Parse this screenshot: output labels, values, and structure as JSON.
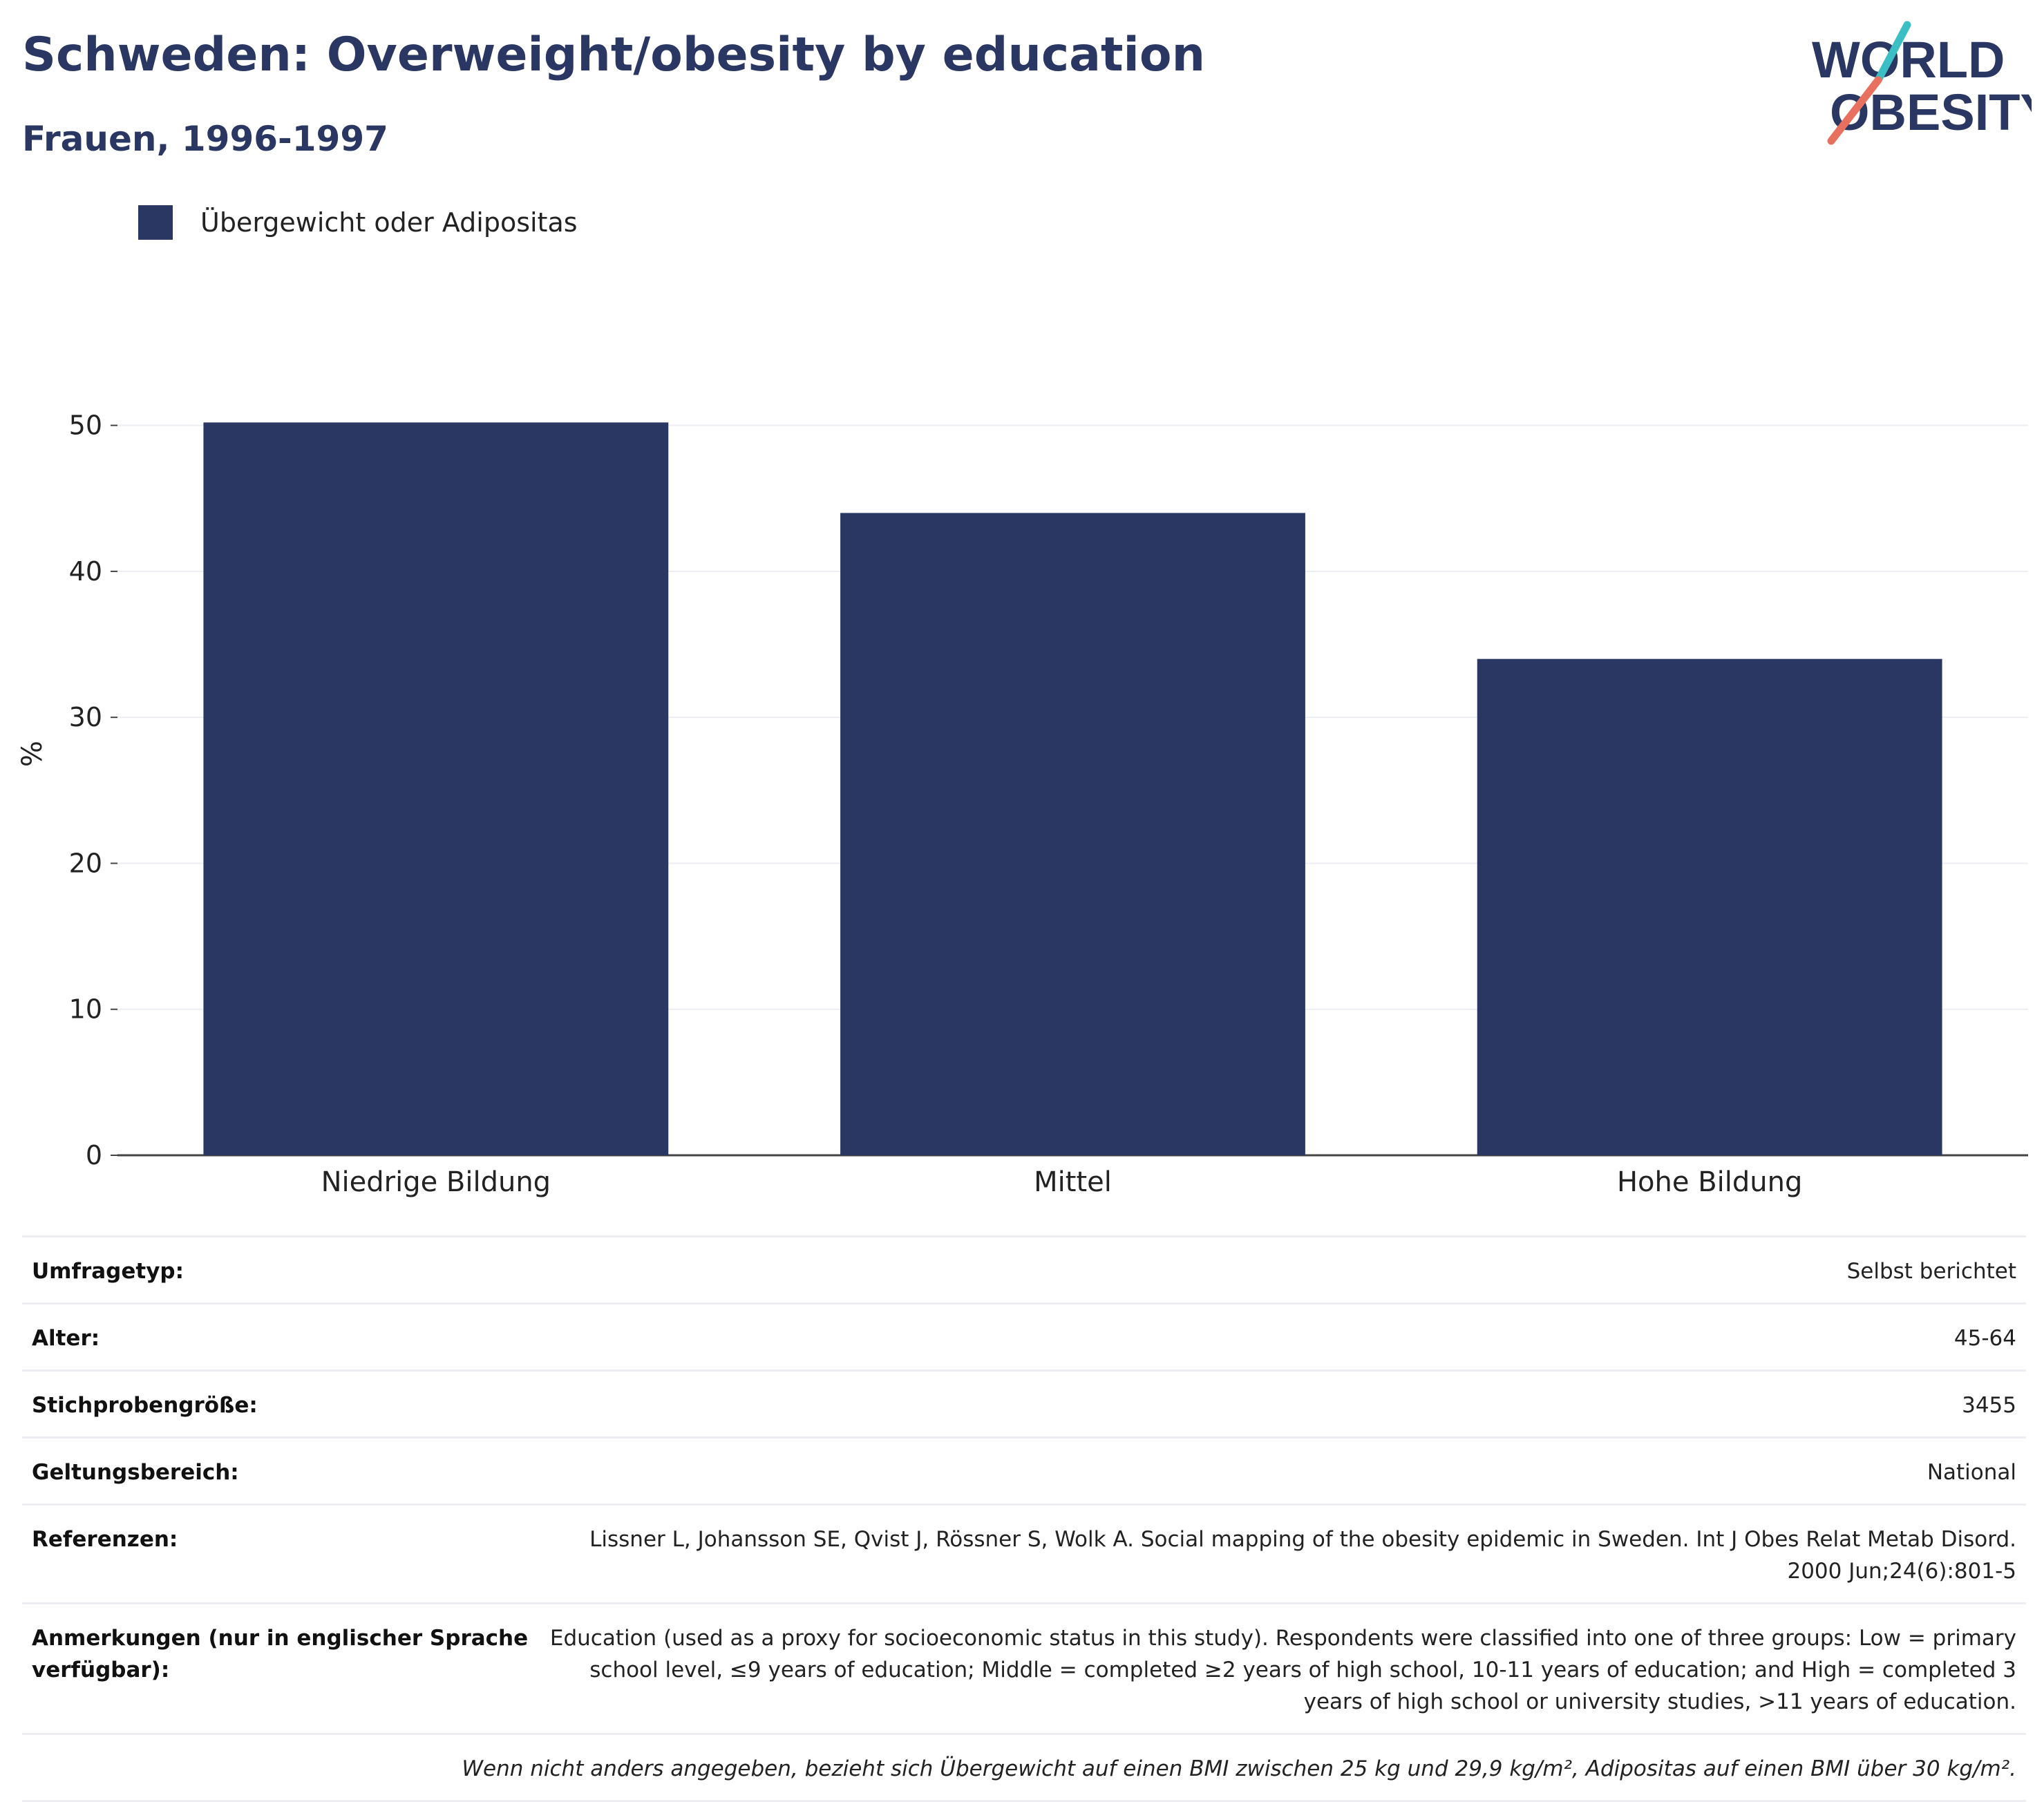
{
  "title": "Schweden: Overweight/obesity by education",
  "subtitle": "Frauen, 1996-1997",
  "logo": {
    "line1": "WORLD",
    "line2": "OBESITY",
    "colors": {
      "text": "#2a3763",
      "slash_top": "#3bbfc4",
      "slash_bottom": "#e8705f"
    }
  },
  "colors": {
    "bar": "#2a3763",
    "grid": "#eceef4",
    "axis": "#444444"
  },
  "legend": {
    "label": "Übergewicht oder Adipositas",
    "placement": "top-left"
  },
  "chart_data": {
    "type": "bar",
    "categories": [
      "Niedrige Bildung",
      "Mittel",
      "Hohe Bildung"
    ],
    "series": [
      {
        "name": "Übergewicht oder Adipositas",
        "values": [
          50.2,
          44.0,
          34.0
        ]
      }
    ],
    "xlabel": "",
    "ylabel": "%",
    "ylim": [
      0,
      55
    ],
    "yticks": [
      0,
      10,
      20,
      30,
      40,
      50
    ],
    "grid": true
  },
  "info": [
    {
      "key": "Umfragetyp:",
      "value": "Selbst berichtet"
    },
    {
      "key": "Alter:",
      "value": "45-64"
    },
    {
      "key": "Stichprobengröße:",
      "value": "3455"
    },
    {
      "key": "Geltungsbereich:",
      "value": "National"
    },
    {
      "key": "Referenzen:",
      "value": "Lissner L, Johansson SE, Qvist J, Rössner S, Wolk A. Social mapping of the obesity epidemic in Sweden. Int J Obes Relat Metab Disord. 2000 Jun;24(6):801-5"
    },
    {
      "key": "Anmerkungen (nur in englischer Sprache verfügbar):",
      "value": "Education (used as a proxy for socioeconomic status in this study). Respondents were classified into one of three groups: Low = primary school level, ≤9 years of education; Middle = completed ≥2 years of high school, 10-11 years of education; and High = completed 3 years of high school or university studies, >11 years of education."
    }
  ],
  "footnote": "Wenn nicht anders angegeben, bezieht sich Übergewicht auf einen BMI zwischen 25 kg und 29,9 kg/m², Adipositas auf einen BMI über 30 kg/m²."
}
